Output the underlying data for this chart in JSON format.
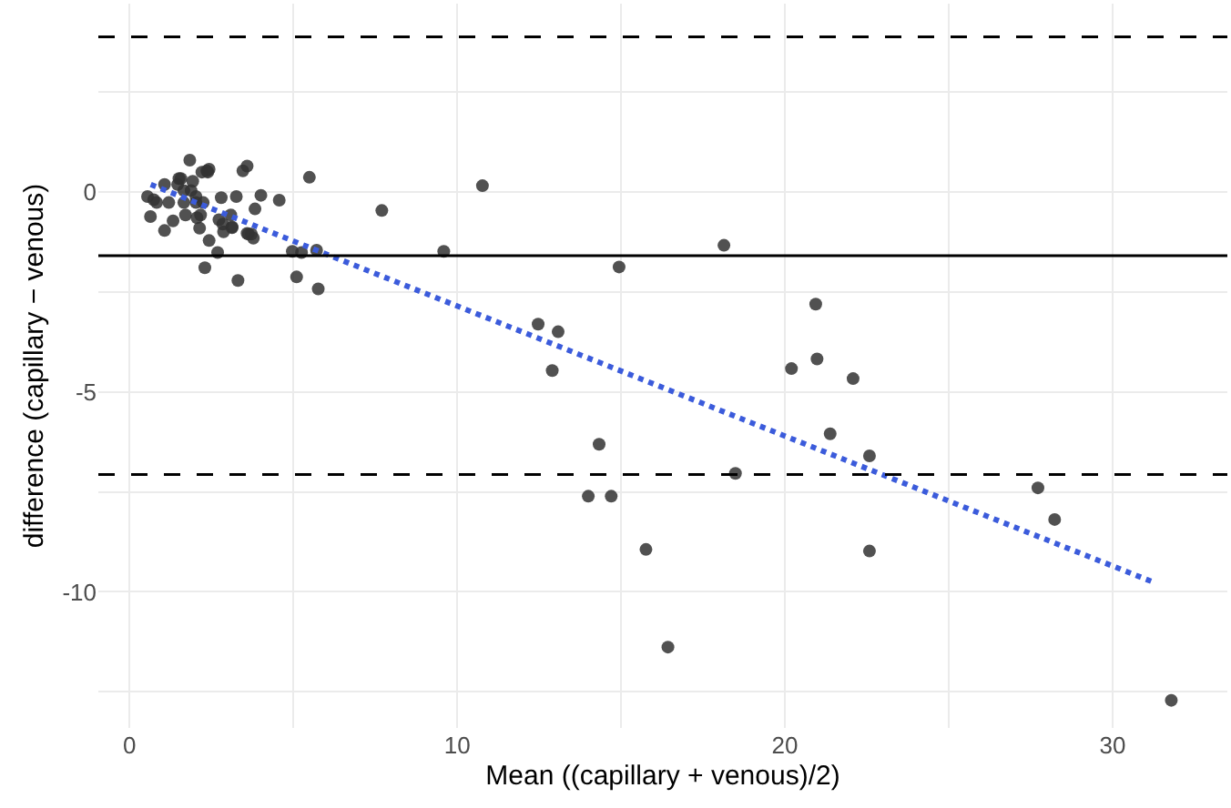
{
  "chart_data": {
    "type": "scatter",
    "xlabel": "Mean ((capillary + venous)/2)",
    "ylabel": "difference (capillary − venous)",
    "xlim": [
      -0.95,
      33.5
    ],
    "ylim": [
      -13.4,
      4.7
    ],
    "xticks": [
      0,
      {
        "value": 5,
        "label": null
      },
      10,
      {
        "value": 15,
        "label": null
      },
      20,
      {
        "value": 25,
        "label": null
      },
      30
    ],
    "yticks": [
      {
        "value": -12.5,
        "label": null
      },
      -10,
      {
        "value": -7.5,
        "label": null
      },
      -5,
      {
        "value": -2.5,
        "label": null
      },
      0,
      {
        "value": 2.5,
        "label": null
      }
    ],
    "grid": true,
    "marker": "circle",
    "ref_lines": [
      {
        "axis": "y",
        "value": 3.87,
        "color": "#000000",
        "line_style": "dashed"
      },
      {
        "axis": "y",
        "value": -1.6,
        "color": "#000000",
        "line_style": "solid"
      },
      {
        "axis": "y",
        "value": -7.07,
        "color": "#000000",
        "line_style": "dashed"
      }
    ],
    "series": [
      {
        "color": "#333333",
        "x": [
          0.55,
          0.64,
          0.74,
          0.83,
          1.07,
          1.07,
          1.2,
          1.33,
          1.47,
          1.57,
          1.66,
          1.71,
          1.84,
          1.88,
          1.93,
          2.03,
          2.06,
          2.14,
          2.21,
          2.25,
          2.3,
          2.36,
          2.43,
          2.43,
          2.69,
          2.73,
          2.8,
          2.87,
          3.09,
          3.13,
          3.26,
          3.31,
          3.46,
          3.59,
          3.63,
          3.72,
          3.78,
          3.83,
          4.01,
          4.57,
          4.97,
          5.1,
          5.25,
          5.49,
          5.71,
          5.76,
          7.7,
          9.59,
          10.77,
          12.47,
          13.08,
          12.9,
          14.33,
          14.0,
          14.7,
          18.14,
          14.94,
          20.94,
          20.2,
          20.98,
          22.08,
          21.38,
          22.58,
          18.49,
          27.72,
          28.23,
          22.58,
          15.76,
          16.43,
          31.79,
          1.66,
          2.03,
          2.39,
          1.51,
          2.17,
          2.85,
          3.13,
          3.59
        ],
        "values": [
          -0.12,
          -0.62,
          -0.2,
          -0.27,
          -0.97,
          0.18,
          -0.27,
          -0.73,
          0.18,
          0.33,
          -0.27,
          -0.58,
          0.79,
          0.03,
          0.26,
          -0.12,
          -0.65,
          -0.91,
          0.49,
          -0.27,
          -1.9,
          0.52,
          0.56,
          -1.22,
          -1.52,
          -0.7,
          -0.15,
          -1.0,
          -0.58,
          -0.88,
          -0.12,
          -2.22,
          0.52,
          0.64,
          -1.06,
          -1.06,
          -1.16,
          -0.43,
          -0.09,
          -0.21,
          -1.49,
          -2.13,
          -1.52,
          0.36,
          -1.46,
          -2.43,
          -0.47,
          -1.49,
          0.15,
          -3.31,
          -3.5,
          -4.47,
          -6.31,
          -7.61,
          -7.61,
          -1.34,
          -1.88,
          -2.81,
          -4.42,
          -4.18,
          -4.67,
          -6.05,
          -6.6,
          -7.04,
          -7.4,
          -8.19,
          -8.98,
          -8.94,
          -11.38,
          -12.71,
          0.03,
          -0.27,
          0.49,
          0.33,
          -0.58,
          -0.81,
          -0.9,
          -1.04
        ]
      },
      {
        "type": "line",
        "color": "#3b5bdb",
        "line_style": "dotted",
        "marker": "none",
        "x": [
          0.65,
          31.25
        ],
        "values": [
          0.18,
          -9.76
        ]
      }
    ]
  }
}
